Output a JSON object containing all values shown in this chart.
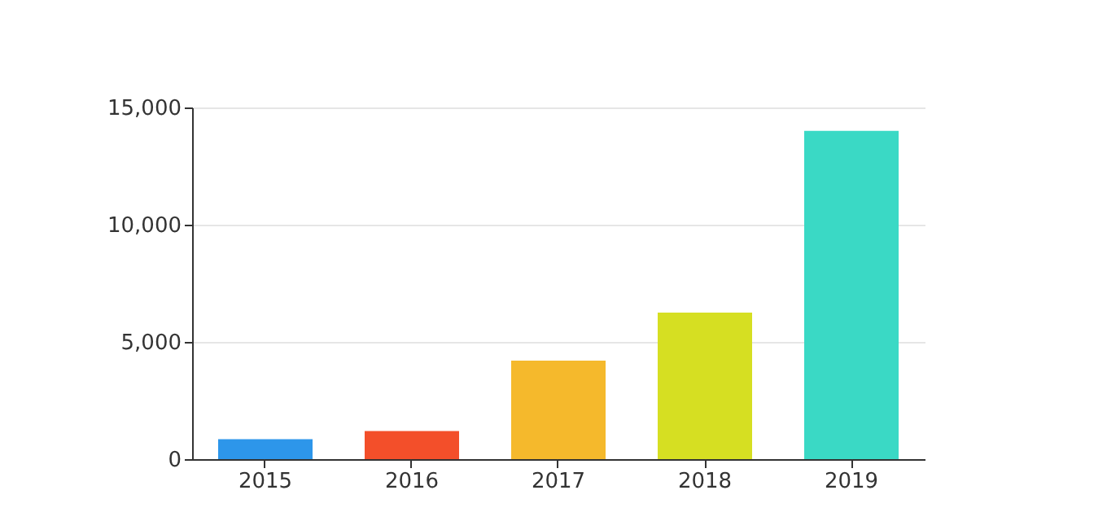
{
  "chart_data": {
    "type": "bar",
    "categories": [
      "2015",
      "2016",
      "2017",
      "2018",
      "2019"
    ],
    "values": [
      850,
      1200,
      4200,
      6250,
      14000
    ],
    "colors": [
      "#2d96ea",
      "#f34f2a",
      "#f5b92c",
      "#d6df22",
      "#3ad9c5"
    ],
    "ylim": [
      0,
      15000
    ],
    "yticks": [
      {
        "value": 0,
        "label": "0"
      },
      {
        "value": 5000,
        "label": "5,000"
      },
      {
        "value": 10000,
        "label": "10,000"
      },
      {
        "value": 15000,
        "label": "15,000"
      }
    ],
    "grid": "y"
  }
}
